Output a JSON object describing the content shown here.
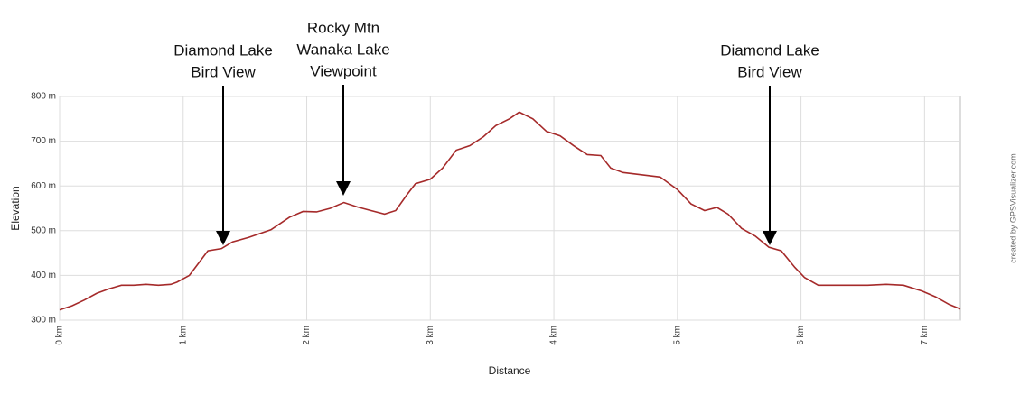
{
  "chart_data": {
    "type": "line",
    "xlabel": "Distance",
    "ylabel": "Elevation",
    "credit": "created by GPSVisualizer.com",
    "x": [
      0,
      0.1,
      0.2,
      0.3,
      0.4,
      0.5,
      0.6,
      0.7,
      0.8,
      0.9,
      0.95,
      1.05,
      1.2,
      1.31,
      1.4,
      1.53,
      1.71,
      1.86,
      1.97,
      2.08,
      2.19,
      2.3,
      2.41,
      2.52,
      2.63,
      2.72,
      2.81,
      2.88,
      3.0,
      3.1,
      3.21,
      3.32,
      3.43,
      3.53,
      3.64,
      3.72,
      3.83,
      3.94,
      4.05,
      4.16,
      4.27,
      4.38,
      4.46,
      4.56,
      4.71,
      4.86,
      5.0,
      5.11,
      5.22,
      5.32,
      5.41,
      5.52,
      5.63,
      5.74,
      5.84,
      5.95,
      6.03,
      6.14,
      6.32,
      6.54,
      6.69,
      6.83,
      6.98,
      7.09,
      7.2,
      7.29
    ],
    "series": [
      {
        "name": "Elevation",
        "color": "#a52a2a",
        "values": [
          323,
          332,
          345,
          360,
          370,
          378,
          378,
          380,
          378,
          380,
          385,
          400,
          455,
          460,
          475,
          485,
          502,
          530,
          543,
          542,
          550,
          563,
          553,
          545,
          537,
          545,
          580,
          605,
          615,
          640,
          680,
          690,
          710,
          735,
          750,
          765,
          750,
          722,
          712,
          690,
          670,
          668,
          640,
          630,
          625,
          620,
          592,
          560,
          545,
          552,
          537,
          505,
          488,
          463,
          455,
          418,
          395,
          378,
          378,
          378,
          380,
          378,
          365,
          352,
          335,
          325
        ]
      }
    ],
    "xlim": [
      0,
      7.29
    ],
    "ylim": [
      300,
      800
    ],
    "xticks": [
      {
        "value": 0,
        "label": "0 km"
      },
      {
        "value": 1,
        "label": "1 km"
      },
      {
        "value": 2,
        "label": "2 km"
      },
      {
        "value": 3,
        "label": "3 km"
      },
      {
        "value": 4,
        "label": "4 km"
      },
      {
        "value": 5,
        "label": "5 km"
      },
      {
        "value": 6,
        "label": "6 km"
      },
      {
        "value": 7,
        "label": "7 km"
      }
    ],
    "yticks": [
      {
        "value": 300,
        "label": "300 m"
      },
      {
        "value": 400,
        "label": "400 m"
      },
      {
        "value": 500,
        "label": "500 m"
      },
      {
        "value": 600,
        "label": "600 m"
      },
      {
        "value": 700,
        "label": "700 m"
      },
      {
        "value": 800,
        "label": "800 m"
      }
    ],
    "grid": true,
    "annotations": [
      {
        "lines": [
          "Diamond Lake",
          "Bird View"
        ]
      },
      {
        "lines": [
          "Rocky Mtn",
          "Wanaka Lake",
          "Viewpoint"
        ]
      },
      {
        "lines": [
          "Diamond Lake",
          "Bird View"
        ]
      }
    ]
  }
}
